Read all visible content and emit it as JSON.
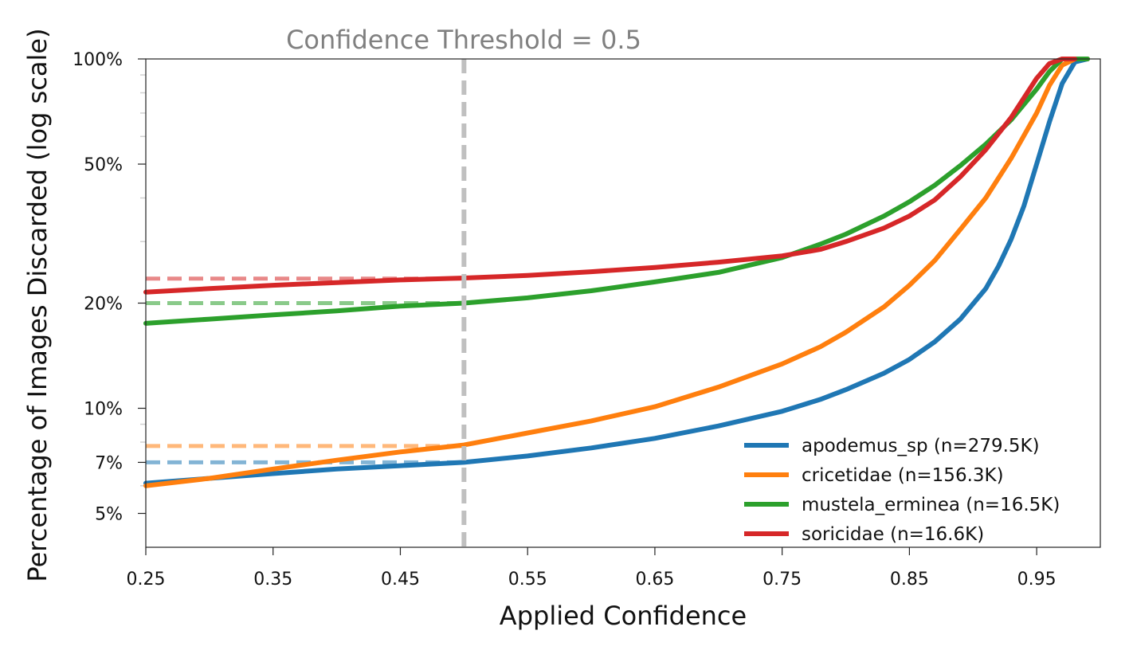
{
  "chart_data": {
    "type": "line",
    "title": "",
    "annotation": "Confidence Threshold = 0.5",
    "xlabel": "Applied Confidence",
    "ylabel": "Percentage of Images Discarded (log scale)",
    "xlim": [
      0.25,
      1.0
    ],
    "ylim": [
      4,
      100
    ],
    "yscale": "log",
    "x_ticks": [
      0.25,
      0.35,
      0.45,
      0.55,
      0.65,
      0.75,
      0.85,
      0.95
    ],
    "x_tick_labels": [
      "0.25",
      "0.35",
      "0.45",
      "0.55",
      "0.65",
      "0.75",
      "0.85",
      "0.95"
    ],
    "y_ticks": [
      5,
      7,
      10,
      20,
      50,
      100
    ],
    "y_tick_labels": [
      "5%",
      "7%",
      "10%",
      "20%",
      "50%",
      "100%"
    ],
    "y_minor_ticks": [
      6,
      8,
      9,
      30,
      40,
      60,
      70,
      80,
      90
    ],
    "threshold": 0.5,
    "threshold_color": "#c0c0c0",
    "grid": false,
    "legend_position": "lower-right",
    "series": [
      {
        "name": "apodemus_sp (n=279.5K)",
        "color": "#1f77b4",
        "threshold_value": 7,
        "x": [
          0.25,
          0.3,
          0.35,
          0.4,
          0.45,
          0.5,
          0.55,
          0.6,
          0.65,
          0.7,
          0.75,
          0.78,
          0.8,
          0.83,
          0.85,
          0.87,
          0.89,
          0.91,
          0.92,
          0.93,
          0.94,
          0.95,
          0.96,
          0.97,
          0.98,
          0.99
        ],
        "y": [
          6.1,
          6.3,
          6.5,
          6.7,
          6.85,
          7.0,
          7.3,
          7.7,
          8.2,
          8.9,
          9.8,
          10.6,
          11.3,
          12.6,
          13.8,
          15.5,
          18.0,
          22.0,
          25.5,
          30.5,
          38.0,
          50.0,
          66.0,
          85.0,
          98.0,
          100.0
        ]
      },
      {
        "name": "cricetidae (n=156.3K)",
        "color": "#ff7f0e",
        "threshold_value": 7.8,
        "x": [
          0.25,
          0.3,
          0.35,
          0.4,
          0.45,
          0.5,
          0.55,
          0.6,
          0.65,
          0.7,
          0.75,
          0.78,
          0.8,
          0.83,
          0.85,
          0.87,
          0.89,
          0.91,
          0.93,
          0.95,
          0.96,
          0.97,
          0.98,
          0.99
        ],
        "y": [
          6.0,
          6.3,
          6.7,
          7.1,
          7.5,
          7.85,
          8.5,
          9.2,
          10.1,
          11.5,
          13.4,
          15.0,
          16.5,
          19.5,
          22.5,
          26.5,
          32.5,
          40.0,
          52.0,
          70.0,
          84.0,
          96.0,
          100.0,
          100.0
        ]
      },
      {
        "name": "mustela_erminea (n=16.5K)",
        "color": "#2ca02c",
        "threshold_value": 20,
        "x": [
          0.25,
          0.3,
          0.35,
          0.4,
          0.45,
          0.5,
          0.55,
          0.6,
          0.65,
          0.7,
          0.75,
          0.78,
          0.8,
          0.83,
          0.85,
          0.87,
          0.89,
          0.91,
          0.93,
          0.95,
          0.96,
          0.97,
          0.98,
          0.99
        ],
        "y": [
          17.5,
          18.0,
          18.5,
          19.0,
          19.6,
          20.0,
          20.7,
          21.7,
          23.0,
          24.5,
          27.0,
          29.5,
          31.5,
          35.5,
          39.0,
          43.5,
          49.5,
          57.0,
          67.0,
          82.0,
          92.0,
          100.0,
          100.0,
          100.0
        ]
      },
      {
        "name": "soricidae (n=16.6K)",
        "color": "#d62728",
        "threshold_value": 23.5,
        "x": [
          0.25,
          0.3,
          0.35,
          0.4,
          0.45,
          0.5,
          0.55,
          0.6,
          0.65,
          0.7,
          0.75,
          0.78,
          0.8,
          0.83,
          0.85,
          0.87,
          0.89,
          0.91,
          0.93,
          0.95,
          0.96,
          0.97,
          0.98
        ],
        "y": [
          21.5,
          22.0,
          22.5,
          22.9,
          23.3,
          23.6,
          24.0,
          24.6,
          25.3,
          26.2,
          27.3,
          28.5,
          30.0,
          32.8,
          35.5,
          39.5,
          46.0,
          55.0,
          68.0,
          88.0,
          97.0,
          100.0,
          100.0
        ]
      }
    ]
  }
}
